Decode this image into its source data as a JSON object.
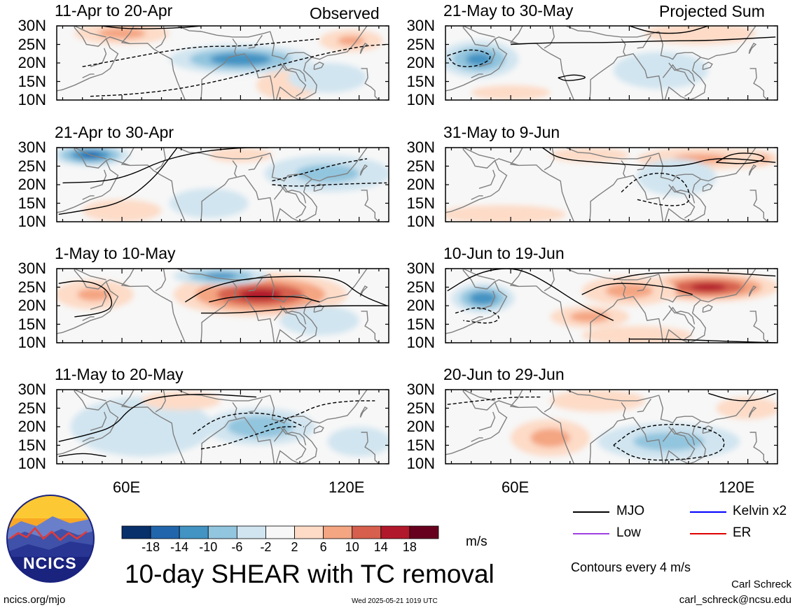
{
  "main_title": "10-day SHEAR with TC removal",
  "observed_label": "Observed",
  "projected_label": "Projected Sum",
  "panels": [
    {
      "title": "11-Apr to 20-Apr",
      "fields": [
        {
          "lon": 90,
          "lat": 21,
          "val": -12,
          "sx": 18,
          "sy": 4
        },
        {
          "lon": 60,
          "lat": 28,
          "val": 6,
          "sx": 12,
          "sy": 3
        },
        {
          "lon": 118,
          "lat": 26,
          "val": 5,
          "sx": 8,
          "sy": 3
        },
        {
          "lon": 102,
          "lat": 14,
          "val": 4,
          "sx": 8,
          "sy": 4
        },
        {
          "lon": 112,
          "lat": 16,
          "val": -3,
          "sx": 10,
          "sy": 4
        }
      ],
      "contours": [
        {
          "style": "solid",
          "lon": [
            55,
            60,
            67,
            75,
            80
          ],
          "lat": [
            30,
            29.3,
            29.2,
            29.5,
            30
          ]
        },
        {
          "style": "dashed",
          "lon": [
            50,
            60,
            70,
            80,
            90,
            100,
            110
          ],
          "lat": [
            19,
            21,
            23,
            24.5,
            24.5,
            25.5,
            26.5
          ]
        },
        {
          "style": "dashed",
          "lon": [
            52,
            62,
            75,
            90,
            105,
            120,
            127
          ],
          "lat": [
            11,
            11.5,
            13,
            16.5,
            21,
            24.5,
            25
          ]
        }
      ]
    },
    {
      "title": "21-Apr to 30-Apr",
      "fields": [
        {
          "lon": 52,
          "lat": 28,
          "val": -14,
          "sx": 10,
          "sy": 3
        },
        {
          "lon": 112,
          "lat": 23,
          "val": -6,
          "sx": 16,
          "sy": 5
        },
        {
          "lon": 90,
          "lat": 28,
          "val": 4,
          "sx": 8,
          "sy": 2
        },
        {
          "lon": 60,
          "lat": 13,
          "val": 3,
          "sx": 10,
          "sy": 3
        },
        {
          "lon": 82,
          "lat": 15,
          "val": -3,
          "sx": 10,
          "sy": 4
        }
      ],
      "contours": [
        {
          "style": "solid",
          "lon": [
            45,
            55,
            62,
            70,
            80,
            90,
            97
          ],
          "lat": [
            20.5,
            20.8,
            22.5,
            26.5,
            29,
            30,
            30
          ]
        },
        {
          "style": "solid",
          "lon": [
            44,
            50,
            60,
            68,
            74
          ],
          "lat": [
            12,
            13,
            15,
            21.5,
            30
          ]
        },
        {
          "style": "dashed",
          "lon": [
            98,
            104,
            112,
            120,
            127
          ],
          "lat": [
            20,
            19.5,
            20,
            20.3,
            20.5
          ]
        },
        {
          "style": "dashed",
          "lon": [
            98,
            106,
            114,
            122
          ],
          "lat": [
            21,
            23,
            25.5,
            27
          ]
        }
      ]
    },
    {
      "title": "1-May to 10-May",
      "fields": [
        {
          "lon": 95,
          "lat": 23,
          "val": 14,
          "sx": 22,
          "sy": 6
        },
        {
          "lon": 85,
          "lat": 28,
          "val": -10,
          "sx": 12,
          "sy": 2.5
        },
        {
          "lon": 53,
          "lat": 23,
          "val": 5,
          "sx": 10,
          "sy": 4
        },
        {
          "lon": 110,
          "lat": 16,
          "val": -3,
          "sx": 10,
          "sy": 4
        }
      ],
      "contours": [
        {
          "style": "solid",
          "lon": [
            76,
            82,
            92,
            105,
            115,
            120,
            127
          ],
          "lat": [
            21,
            25,
            27.5,
            28,
            27.5,
            23,
            20
          ]
        },
        {
          "style": "solid",
          "lon": [
            82,
            88,
            95,
            105,
            110
          ],
          "lat": [
            21,
            22.5,
            22.5,
            22.5,
            21
          ]
        },
        {
          "style": "solid",
          "lon": [
            80,
            88,
            95,
            100,
            106,
            112,
            127
          ],
          "lat": [
            18,
            18,
            18.5,
            19,
            19.5,
            20,
            20
          ]
        },
        {
          "style": "solid",
          "lon": [
            44,
            50,
            56,
            58,
            55,
            48
          ],
          "lat": [
            26,
            27,
            25,
            20,
            18,
            17
          ]
        }
      ]
    },
    {
      "title": "11-May to 20-May",
      "fields": [
        {
          "lon": 95,
          "lat": 20,
          "val": -8,
          "sx": 14,
          "sy": 5
        },
        {
          "lon": 65,
          "lat": 20,
          "val": -3,
          "sx": 18,
          "sy": 8
        },
        {
          "lon": 75,
          "lat": 27,
          "val": 4,
          "sx": 10,
          "sy": 2.5
        },
        {
          "lon": 120,
          "lat": 16,
          "val": -2,
          "sx": 8,
          "sy": 4
        }
      ],
      "contours": [
        {
          "style": "solid",
          "lon": [
            44,
            52,
            58,
            62,
            68,
            80,
            94
          ],
          "lat": [
            16,
            18,
            20,
            25,
            28,
            29,
            28
          ]
        },
        {
          "style": "solid",
          "lon": [
            44,
            50,
            56
          ],
          "lat": [
            12,
            13,
            12
          ]
        },
        {
          "style": "dashed",
          "lon": [
            78,
            84,
            92,
            100,
            106
          ],
          "lat": [
            18,
            22.5,
            24,
            23,
            20
          ]
        },
        {
          "style": "dashed",
          "lon": [
            80,
            86,
            94,
            100,
            104
          ],
          "lat": [
            14,
            15,
            18,
            20,
            20
          ]
        },
        {
          "style": "dashed",
          "lon": [
            96,
            104,
            110,
            118,
            124
          ],
          "lat": [
            20,
            23,
            26,
            27,
            27
          ]
        }
      ]
    },
    {
      "title": "21-May to 30-May",
      "fields": [
        {
          "lon": 52,
          "lat": 21,
          "val": -10,
          "sx": 10,
          "sy": 5
        },
        {
          "lon": 108,
          "lat": 28,
          "val": 4,
          "sx": 14,
          "sy": 3
        },
        {
          "lon": 98,
          "lat": 18,
          "val": -2,
          "sx": 12,
          "sy": 5
        },
        {
          "lon": 60,
          "lat": 12,
          "val": 3,
          "sx": 10,
          "sy": 2
        }
      ],
      "contours": [
        {
          "style": "solid",
          "lon": [
            60,
            70,
            85,
            100,
            110,
            127
          ],
          "lat": [
            25,
            25.5,
            25.5,
            26,
            26,
            27
          ]
        },
        {
          "style": "solid",
          "lon": [
            90,
            96,
            104,
            110
          ],
          "lat": [
            30,
            28,
            28,
            30
          ]
        },
        {
          "style": "solid",
          "lon": [
            72,
            76,
            80,
            74,
            72
          ],
          "lat": [
            16,
            17,
            16,
            15,
            16
          ]
        },
        {
          "style": "dashed",
          "lon": [
            44,
            50,
            56,
            52,
            46,
            44
          ],
          "lat": [
            22,
            24,
            22,
            19,
            19,
            22
          ]
        }
      ]
    },
    {
      "title": "31-May to 9-Jun",
      "fields": [
        {
          "lon": 118,
          "lat": 27,
          "val": 14,
          "sx": 10,
          "sy": 2.5
        },
        {
          "lon": 108,
          "lat": 27,
          "val": 5,
          "sx": 16,
          "sy": 3
        },
        {
          "lon": 80,
          "lat": 28,
          "val": 3,
          "sx": 10,
          "sy": 2
        },
        {
          "lon": 58,
          "lat": 12,
          "val": 4,
          "sx": 16,
          "sy": 2.5
        },
        {
          "lon": 102,
          "lat": 22,
          "val": -3,
          "sx": 10,
          "sy": 5
        }
      ],
      "contours": [
        {
          "style": "solid",
          "lon": [
            68,
            72,
            82,
            95,
            104,
            112,
            127
          ],
          "lat": [
            30,
            27,
            26,
            25,
            25,
            27.5,
            26
          ]
        },
        {
          "style": "solid",
          "lon": [
            112,
            116,
            122,
            125,
            120,
            112
          ],
          "lat": [
            26,
            28.5,
            28.5,
            27,
            25.5,
            26
          ]
        },
        {
          "style": "dashed",
          "lon": [
            88,
            92,
            98,
            104,
            106,
            100,
            92
          ],
          "lat": [
            18,
            22,
            23.5,
            21.5,
            15,
            14,
            16
          ]
        }
      ]
    },
    {
      "title": "10-Jun to 19-Jun",
      "fields": [
        {
          "lon": 53,
          "lat": 22,
          "val": -12,
          "sx": 8,
          "sy": 4
        },
        {
          "lon": 110,
          "lat": 25,
          "val": 14,
          "sx": 18,
          "sy": 4
        },
        {
          "lon": 90,
          "lat": 24,
          "val": 6,
          "sx": 12,
          "sy": 4
        },
        {
          "lon": 80,
          "lat": 17,
          "val": 6,
          "sx": 10,
          "sy": 3
        },
        {
          "lon": 92,
          "lat": 12,
          "val": 3,
          "sx": 14,
          "sy": 2.5
        }
      ],
      "contours": [
        {
          "style": "solid",
          "lon": [
            44,
            50,
            56,
            62,
            68,
            78,
            86
          ],
          "lat": [
            24,
            28,
            30,
            30,
            27,
            20,
            16
          ]
        },
        {
          "style": "solid",
          "lon": [
            86,
            92,
            100,
            110,
            120,
            127
          ],
          "lat": [
            27,
            28.5,
            29,
            29,
            28.5,
            28
          ]
        },
        {
          "style": "solid",
          "lon": [
            78,
            84,
            92,
            100,
            106
          ],
          "lat": [
            23,
            26,
            26,
            25,
            23
          ]
        },
        {
          "style": "solid",
          "lon": [
            90,
            100,
            112,
            127
          ],
          "lat": [
            11,
            11,
            10.5,
            10
          ]
        },
        {
          "style": "dashed",
          "lon": [
            46,
            52,
            58,
            55,
            48
          ],
          "lat": [
            18,
            20,
            17,
            15,
            16
          ]
        }
      ]
    },
    {
      "title": "20-Jun to 29-Jun",
      "fields": [
        {
          "lon": 103,
          "lat": 15,
          "val": -14,
          "sx": 10,
          "sy": 3
        },
        {
          "lon": 100,
          "lat": 16,
          "val": -6,
          "sx": 18,
          "sy": 5
        },
        {
          "lon": 70,
          "lat": 17,
          "val": 6,
          "sx": 10,
          "sy": 5
        },
        {
          "lon": 82,
          "lat": 27,
          "val": 4,
          "sx": 12,
          "sy": 3
        },
        {
          "lon": 120,
          "lat": 25,
          "val": 3,
          "sx": 8,
          "sy": 3
        }
      ],
      "contours": [
        {
          "style": "solid",
          "lon": [
            110,
            116,
            122,
            127
          ],
          "lat": [
            29,
            27,
            27,
            29
          ]
        },
        {
          "style": "dashed",
          "lon": [
            44,
            52,
            60,
            68
          ],
          "lat": [
            26,
            27,
            28,
            28
          ]
        },
        {
          "style": "dashed",
          "lon": [
            86,
            92,
            104,
            114,
            114,
            104,
            92,
            86
          ],
          "lat": [
            15,
            20,
            21,
            18,
            13,
            11,
            11,
            15
          ]
        }
      ]
    }
  ],
  "lat_labels": [
    "30N",
    "25N",
    "20N",
    "15N",
    "10N"
  ],
  "lon_labels": [
    "60E",
    "120E"
  ],
  "colorbar": {
    "colors": [
      "#08306b",
      "#2166ac",
      "#4393c3",
      "#92c5de",
      "#d1e5f0",
      "#f7f7f7",
      "#fddbc7",
      "#f4a582",
      "#d6604d",
      "#b2182b",
      "#67001f"
    ],
    "ticks": [
      "-18",
      "-14",
      "-10",
      "-6",
      "-2",
      "2",
      "6",
      "10",
      "14",
      "18"
    ],
    "units": "m/s"
  },
  "legend": [
    {
      "label": "MJO",
      "color": "#000000"
    },
    {
      "label": "Kelvin x2",
      "color": "#0000ff"
    },
    {
      "label": "Low",
      "color": "#a040e0"
    },
    {
      "label": "ER",
      "color": "#e00000"
    }
  ],
  "contour_note": "Contours every 4 m/s",
  "author": "Carl Schreck",
  "email": "carl_schreck@ncsu.edu",
  "site": "ncics.org/mjo",
  "timestamp": "Wed 2025-05-21 1019 UTC",
  "logo_text": "NCICS"
}
